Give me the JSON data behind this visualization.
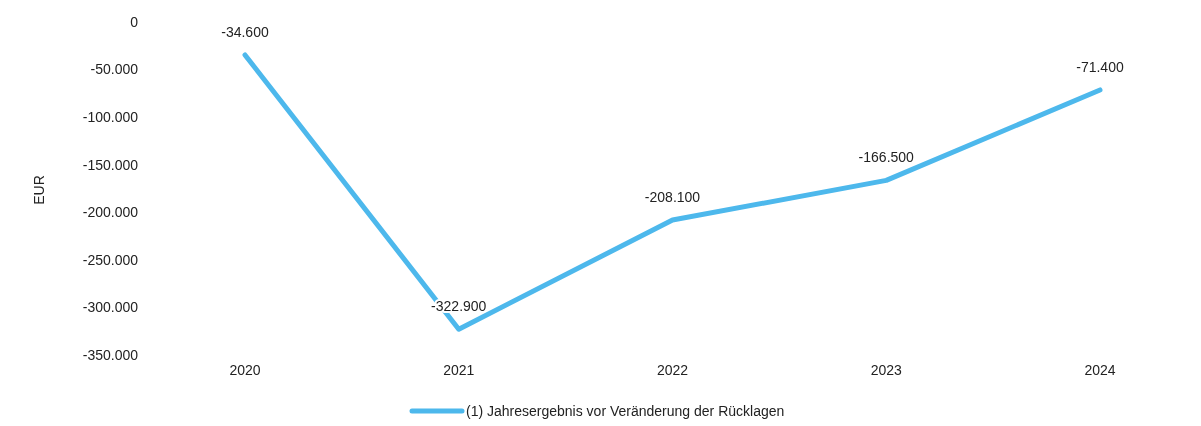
{
  "chart_data": {
    "type": "line",
    "ylabel": "EUR",
    "categories": [
      "2020",
      "2021",
      "2022",
      "2023",
      "2024"
    ],
    "series": [
      {
        "name": "(1) Jahresergebnis vor Veränderung der Rücklagen",
        "color": "#4db8ec",
        "values": [
          -34600,
          -322900,
          -208100,
          -166500,
          -71400
        ],
        "value_labels": [
          "-34.600",
          "-322.900",
          "-208.100",
          "-166.500",
          "-71.400"
        ]
      }
    ],
    "ylim": [
      -350000,
      0
    ],
    "yticks": [
      {
        "value": 0,
        "label": "0"
      },
      {
        "value": -50000,
        "label": "-50.000"
      },
      {
        "value": -100000,
        "label": "-100.000"
      },
      {
        "value": -150000,
        "label": "-150.000"
      },
      {
        "value": -200000,
        "label": "-200.000"
      },
      {
        "value": -250000,
        "label": "-250.000"
      },
      {
        "value": -300000,
        "label": "-300.000"
      },
      {
        "value": -350000,
        "label": "-350.000"
      }
    ],
    "grid": false,
    "legend": "bottom",
    "marker": "none",
    "line_style": "solid"
  }
}
